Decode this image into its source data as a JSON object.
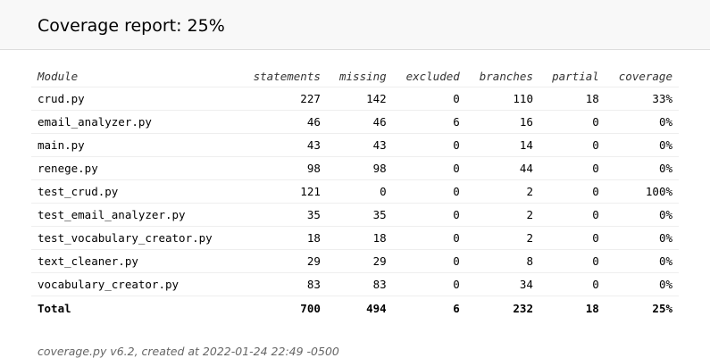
{
  "header": {
    "title": "Coverage report: 25%"
  },
  "table": {
    "columns": [
      "Module",
      "statements",
      "missing",
      "excluded",
      "branches",
      "partial",
      "coverage"
    ],
    "rows": [
      [
        "crud.py",
        "227",
        "142",
        "0",
        "110",
        "18",
        "33%"
      ],
      [
        "email_analyzer.py",
        "46",
        "46",
        "6",
        "16",
        "0",
        "0%"
      ],
      [
        "main.py",
        "43",
        "43",
        "0",
        "14",
        "0",
        "0%"
      ],
      [
        "renege.py",
        "98",
        "98",
        "0",
        "44",
        "0",
        "0%"
      ],
      [
        "test_crud.py",
        "121",
        "0",
        "0",
        "2",
        "0",
        "100%"
      ],
      [
        "test_email_analyzer.py",
        "35",
        "35",
        "0",
        "2",
        "0",
        "0%"
      ],
      [
        "test_vocabulary_creator.py",
        "18",
        "18",
        "0",
        "2",
        "0",
        "0%"
      ],
      [
        "text_cleaner.py",
        "29",
        "29",
        "0",
        "8",
        "0",
        "0%"
      ],
      [
        "vocabulary_creator.py",
        "83",
        "83",
        "0",
        "34",
        "0",
        "0%"
      ]
    ],
    "total": [
      "Total",
      "700",
      "494",
      "6",
      "232",
      "18",
      "25%"
    ]
  },
  "footer": {
    "text": "coverage.py v6.2, created at 2022-01-24 22:49 -0500"
  }
}
